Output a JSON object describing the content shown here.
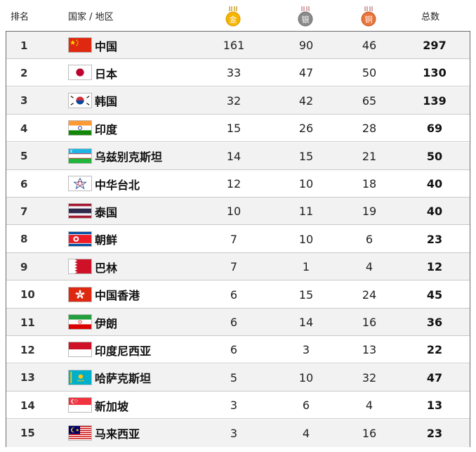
{
  "header": {
    "rank": "排名",
    "country": "国家 / 地区",
    "gold": "金",
    "silver": "银",
    "bronze": "铜",
    "total": "总数"
  },
  "colors": {
    "gold": "#f5b400",
    "silver": "#8a8a8a",
    "bronze": "#e8743b",
    "row_shade": "#f2f2f2",
    "border": "#6b6b6b"
  },
  "rows": [
    {
      "rank": "1",
      "name": "中国",
      "gold": "161",
      "silver": "90",
      "bronze": "46",
      "total": "297",
      "flag": "china-flag-icon"
    },
    {
      "rank": "2",
      "name": "日本",
      "gold": "33",
      "silver": "47",
      "bronze": "50",
      "total": "130",
      "flag": "japan-flag-icon"
    },
    {
      "rank": "3",
      "name": "韩国",
      "gold": "32",
      "silver": "42",
      "bronze": "65",
      "total": "139",
      "flag": "korea-flag-icon"
    },
    {
      "rank": "4",
      "name": "印度",
      "gold": "15",
      "silver": "26",
      "bronze": "28",
      "total": "69",
      "flag": "india-flag-icon"
    },
    {
      "rank": "5",
      "name": "乌兹别克斯坦",
      "gold": "14",
      "silver": "15",
      "bronze": "21",
      "total": "50",
      "flag": "uzbekistan-flag-icon"
    },
    {
      "rank": "6",
      "name": "中华台北",
      "gold": "12",
      "silver": "10",
      "bronze": "18",
      "total": "40",
      "flag": "chinese-taipei-flag-icon"
    },
    {
      "rank": "7",
      "name": "泰国",
      "gold": "10",
      "silver": "11",
      "bronze": "19",
      "total": "40",
      "flag": "thailand-flag-icon"
    },
    {
      "rank": "8",
      "name": "朝鲜",
      "gold": "7",
      "silver": "10",
      "bronze": "6",
      "total": "23",
      "flag": "north-korea-flag-icon"
    },
    {
      "rank": "9",
      "name": "巴林",
      "gold": "7",
      "silver": "1",
      "bronze": "4",
      "total": "12",
      "flag": "bahrain-flag-icon"
    },
    {
      "rank": "10",
      "name": "中国香港",
      "gold": "6",
      "silver": "15",
      "bronze": "24",
      "total": "45",
      "flag": "hong-kong-flag-icon"
    },
    {
      "rank": "11",
      "name": "伊朗",
      "gold": "6",
      "silver": "14",
      "bronze": "16",
      "total": "36",
      "flag": "iran-flag-icon"
    },
    {
      "rank": "12",
      "name": "印度尼西亚",
      "gold": "6",
      "silver": "3",
      "bronze": "13",
      "total": "22",
      "flag": "indonesia-flag-icon"
    },
    {
      "rank": "13",
      "name": "哈萨克斯坦",
      "gold": "5",
      "silver": "10",
      "bronze": "32",
      "total": "47",
      "flag": "kazakhstan-flag-icon"
    },
    {
      "rank": "14",
      "name": "新加坡",
      "gold": "3",
      "silver": "6",
      "bronze": "4",
      "total": "13",
      "flag": "singapore-flag-icon"
    },
    {
      "rank": "15",
      "name": "马来西亚",
      "gold": "3",
      "silver": "4",
      "bronze": "16",
      "total": "23",
      "flag": "malaysia-flag-icon"
    }
  ]
}
